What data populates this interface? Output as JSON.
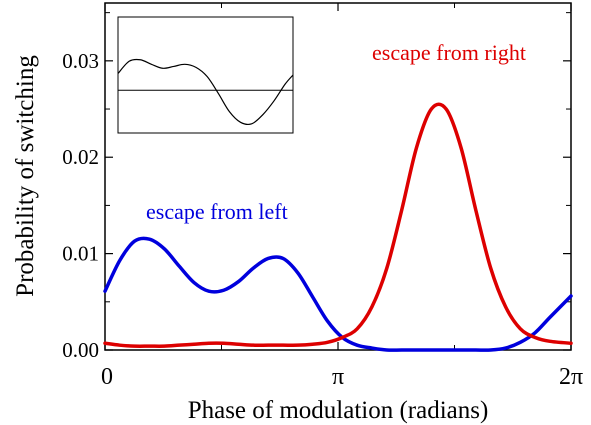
{
  "chart_data": {
    "type": "line",
    "xlabel": "Phase of modulation (radians)",
    "ylabel": "Probability of switching",
    "xlim": [
      0,
      6.283
    ],
    "ylim": [
      0,
      0.036
    ],
    "x_tick_labels": [
      {
        "value": 0,
        "label": "0"
      },
      {
        "value": 3.1416,
        "label": "π"
      },
      {
        "value": 6.2832,
        "label": "2π"
      }
    ],
    "y_tick_labels": [
      {
        "value": 0.0,
        "label": "0.00"
      },
      {
        "value": 0.01,
        "label": "0.01"
      },
      {
        "value": 0.02,
        "label": "0.02"
      },
      {
        "value": 0.03,
        "label": "0.03"
      }
    ],
    "series": [
      {
        "name": "escape from left",
        "color": "#0000dd",
        "x": [
          0,
          0.2,
          0.4,
          0.6,
          0.8,
          1.0,
          1.2,
          1.4,
          1.6,
          1.8,
          2.0,
          2.2,
          2.4,
          2.6,
          2.8,
          3.0,
          3.2,
          3.4,
          3.6,
          3.8,
          4.0,
          4.2,
          4.4,
          4.6,
          4.8,
          5.0,
          5.2,
          5.4,
          5.6,
          5.8,
          6.0,
          6.2832
        ],
        "y": [
          0.0061,
          0.0093,
          0.0113,
          0.0115,
          0.0105,
          0.0087,
          0.007,
          0.0061,
          0.0062,
          0.0071,
          0.0085,
          0.0095,
          0.0095,
          0.008,
          0.0055,
          0.003,
          0.0013,
          0.0005,
          0.0002,
          0.0,
          0.0,
          0.0,
          0.0,
          0.0,
          0.0,
          0.0,
          0.0,
          0.0002,
          0.0008,
          0.0018,
          0.0034,
          0.0056
        ]
      },
      {
        "name": "escape from right",
        "color": "#dd0000",
        "x": [
          0,
          0.2,
          0.4,
          0.6,
          0.8,
          1.0,
          1.2,
          1.4,
          1.6,
          1.8,
          2.0,
          2.2,
          2.4,
          2.6,
          2.8,
          3.0,
          3.2,
          3.4,
          3.6,
          3.8,
          4.0,
          4.2,
          4.4,
          4.6,
          4.8,
          5.0,
          5.2,
          5.4,
          5.6,
          5.8,
          6.0,
          6.2832
        ],
        "y": [
          0.0007,
          0.0005,
          0.0004,
          0.0004,
          0.0004,
          0.0005,
          0.0006,
          0.0007,
          0.0007,
          0.0006,
          0.0005,
          0.0005,
          0.0005,
          0.0005,
          0.0006,
          0.0008,
          0.0013,
          0.0022,
          0.0045,
          0.0085,
          0.0145,
          0.021,
          0.025,
          0.025,
          0.021,
          0.0145,
          0.0085,
          0.0045,
          0.0022,
          0.0013,
          0.0009,
          0.0007
        ]
      }
    ],
    "annotations": [
      {
        "text": "escape from left",
        "color": "#0000dd"
      },
      {
        "text": "escape from right",
        "color": "#dd0000"
      }
    ],
    "inset": {
      "type": "line",
      "description_visible": false,
      "baseline": 0.0,
      "x": [
        0,
        0.4,
        0.8,
        1.2,
        1.6,
        2.0,
        2.4,
        2.8,
        3.2,
        3.6,
        4.0,
        4.4,
        4.8,
        5.2,
        5.6,
        6.0,
        6.2832
      ],
      "y": [
        0.55,
        0.95,
        1.0,
        0.85,
        0.72,
        0.78,
        0.85,
        0.75,
        0.45,
        -0.1,
        -0.7,
        -1.05,
        -1.1,
        -0.8,
        -0.35,
        0.2,
        0.5
      ],
      "ylim": [
        -1.4,
        2.4
      ]
    },
    "grid": false,
    "legend": "none"
  }
}
